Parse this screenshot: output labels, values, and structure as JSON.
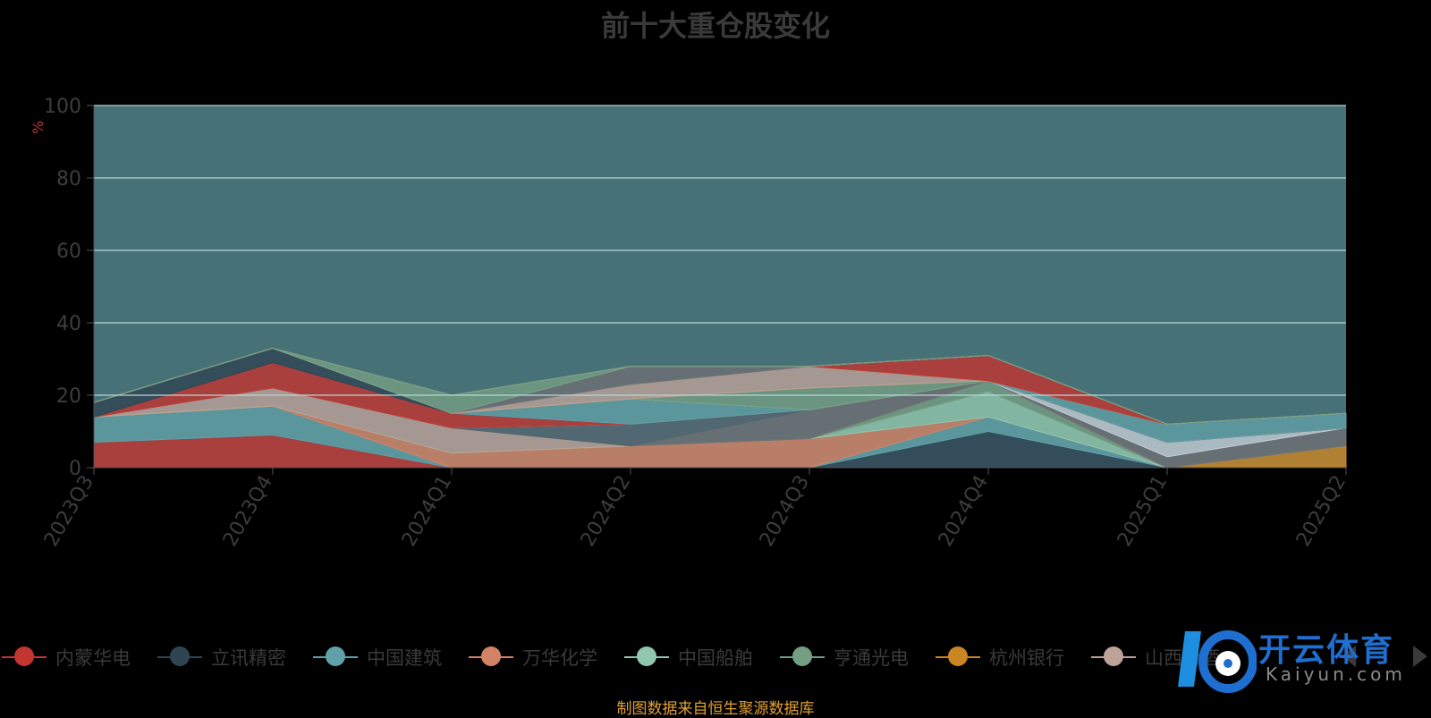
{
  "title": "前十大重仓股变化",
  "y_unit": "%",
  "source": "制图数据来自恒生聚源数据库",
  "watermark": {
    "text": "开云体育",
    "sub": "Kaiyun.com"
  },
  "chart_data": {
    "type": "area",
    "stacked": true,
    "title": "前十大重仓股变化",
    "ylabel": "%",
    "ylim": [
      0,
      100
    ],
    "yticks": [
      0,
      20,
      40,
      60,
      80,
      100
    ],
    "grid": true,
    "legend_position": "bottom",
    "categories": [
      "2023Q3",
      "2023Q4",
      "2024Q1",
      "2024Q2",
      "2024Q3",
      "2024Q4",
      "2025Q1",
      "2025Q2"
    ],
    "series": [
      {
        "name": "内蒙华电",
        "color": "#c23531",
        "values": [
          7,
          9,
          0,
          0,
          0,
          0,
          0,
          0
        ]
      },
      {
        "name": "立讯精密",
        "color": "#2f4554",
        "values": [
          0,
          0,
          0,
          0,
          0,
          10,
          0,
          0
        ]
      },
      {
        "name": "中国建筑",
        "color": "#61a0a8",
        "values": [
          7,
          8,
          0,
          0,
          0,
          4,
          0,
          0
        ]
      },
      {
        "name": "万华化学",
        "color": "#d48265",
        "values": [
          0,
          0,
          4,
          6,
          8,
          0,
          0,
          0
        ]
      },
      {
        "name": "中国船舶",
        "color": "#91c7ae",
        "values": [
          0,
          0,
          0,
          0,
          0,
          7,
          0,
          0
        ]
      },
      {
        "name": "亨通光电",
        "color": "#749f83",
        "values": [
          0,
          0,
          0,
          0,
          0,
          3,
          0,
          0
        ]
      },
      {
        "name": "杭州银行",
        "color": "#ca8622",
        "values": [
          0,
          0,
          0,
          0,
          0,
          0,
          0,
          6
        ]
      },
      {
        "name": "山西汾酒",
        "color": "#bda29a",
        "values": [
          0,
          5,
          7,
          0,
          0,
          0,
          0,
          0
        ]
      },
      {
        "name": "",
        "color": "#6e7074",
        "values": [
          0,
          0,
          0,
          0,
          8,
          0,
          3,
          5
        ]
      },
      {
        "name": "",
        "color": "#546570",
        "values": [
          0,
          0,
          0,
          6,
          0,
          0,
          0,
          0
        ]
      },
      {
        "name": "",
        "color": "#c4ccd3",
        "values": [
          0,
          0,
          0,
          0,
          0,
          0,
          4,
          0
        ]
      },
      {
        "name": "",
        "color": "#c23531",
        "values": [
          0,
          7,
          4,
          0,
          0,
          0,
          0,
          0
        ]
      },
      {
        "name": "",
        "color": "#2f4554",
        "values": [
          4,
          4,
          0,
          0,
          0,
          0,
          0,
          0
        ]
      },
      {
        "name": "",
        "color": "#61a0a8",
        "values": [
          0,
          0,
          0,
          7,
          0,
          0,
          5,
          4
        ]
      },
      {
        "name": "",
        "color": "#d48265",
        "values": [
          0,
          0,
          0,
          0,
          0,
          0,
          0,
          0
        ]
      },
      {
        "name": "",
        "color": "#91c7ae",
        "values": [
          0,
          0,
          0,
          0,
          0,
          0,
          0,
          0
        ]
      },
      {
        "name": "",
        "color": "#749f83",
        "values": [
          0,
          0,
          0,
          0,
          6,
          0,
          0,
          0
        ]
      },
      {
        "name": "",
        "color": "#ca8622",
        "values": [
          0,
          0,
          0,
          0,
          0,
          0,
          0,
          0
        ]
      },
      {
        "name": "",
        "color": "#bda29a",
        "values": [
          0,
          0,
          0,
          4,
          6,
          0,
          0,
          0
        ]
      },
      {
        "name": "",
        "color": "#6e7074",
        "values": [
          0,
          0,
          0,
          5,
          0,
          0,
          0,
          0
        ]
      },
      {
        "name": "",
        "color": "#546570",
        "values": [
          0,
          0,
          0,
          0,
          0,
          0,
          0,
          0
        ]
      },
      {
        "name": "",
        "color": "#c4ccd3",
        "values": [
          0,
          0,
          0,
          0,
          0,
          0,
          0,
          0
        ]
      },
      {
        "name": "",
        "color": "#749f83",
        "values": [
          0,
          0,
          5,
          0,
          0,
          0,
          0,
          0
        ]
      },
      {
        "name": "",
        "color": "#ca8622",
        "values": [
          0,
          0,
          0,
          0,
          0,
          0,
          0,
          0
        ]
      },
      {
        "name": "",
        "color": "#c23531",
        "values": [
          0,
          0,
          0,
          0,
          0,
          7,
          0,
          0
        ]
      },
      {
        "name": "",
        "color": "#2f4554",
        "values": [
          0,
          0,
          0,
          0,
          0,
          0,
          0,
          0
        ]
      },
      {
        "name": "",
        "color": "#61a0a8",
        "values": [
          0,
          0,
          0,
          0,
          0,
          0,
          0,
          0
        ]
      },
      {
        "name": "",
        "color": "#d48265",
        "values": [
          0,
          0,
          0,
          0,
          0,
          0,
          0,
          0
        ]
      },
      {
        "name": "",
        "color": "#91c7ae",
        "values": [
          0,
          0,
          0,
          0,
          0,
          0,
          0,
          0
        ]
      },
      {
        "name": "",
        "color": "#749f83",
        "values": [
          0,
          0,
          0,
          0,
          0,
          0,
          0,
          0
        ]
      }
    ]
  }
}
